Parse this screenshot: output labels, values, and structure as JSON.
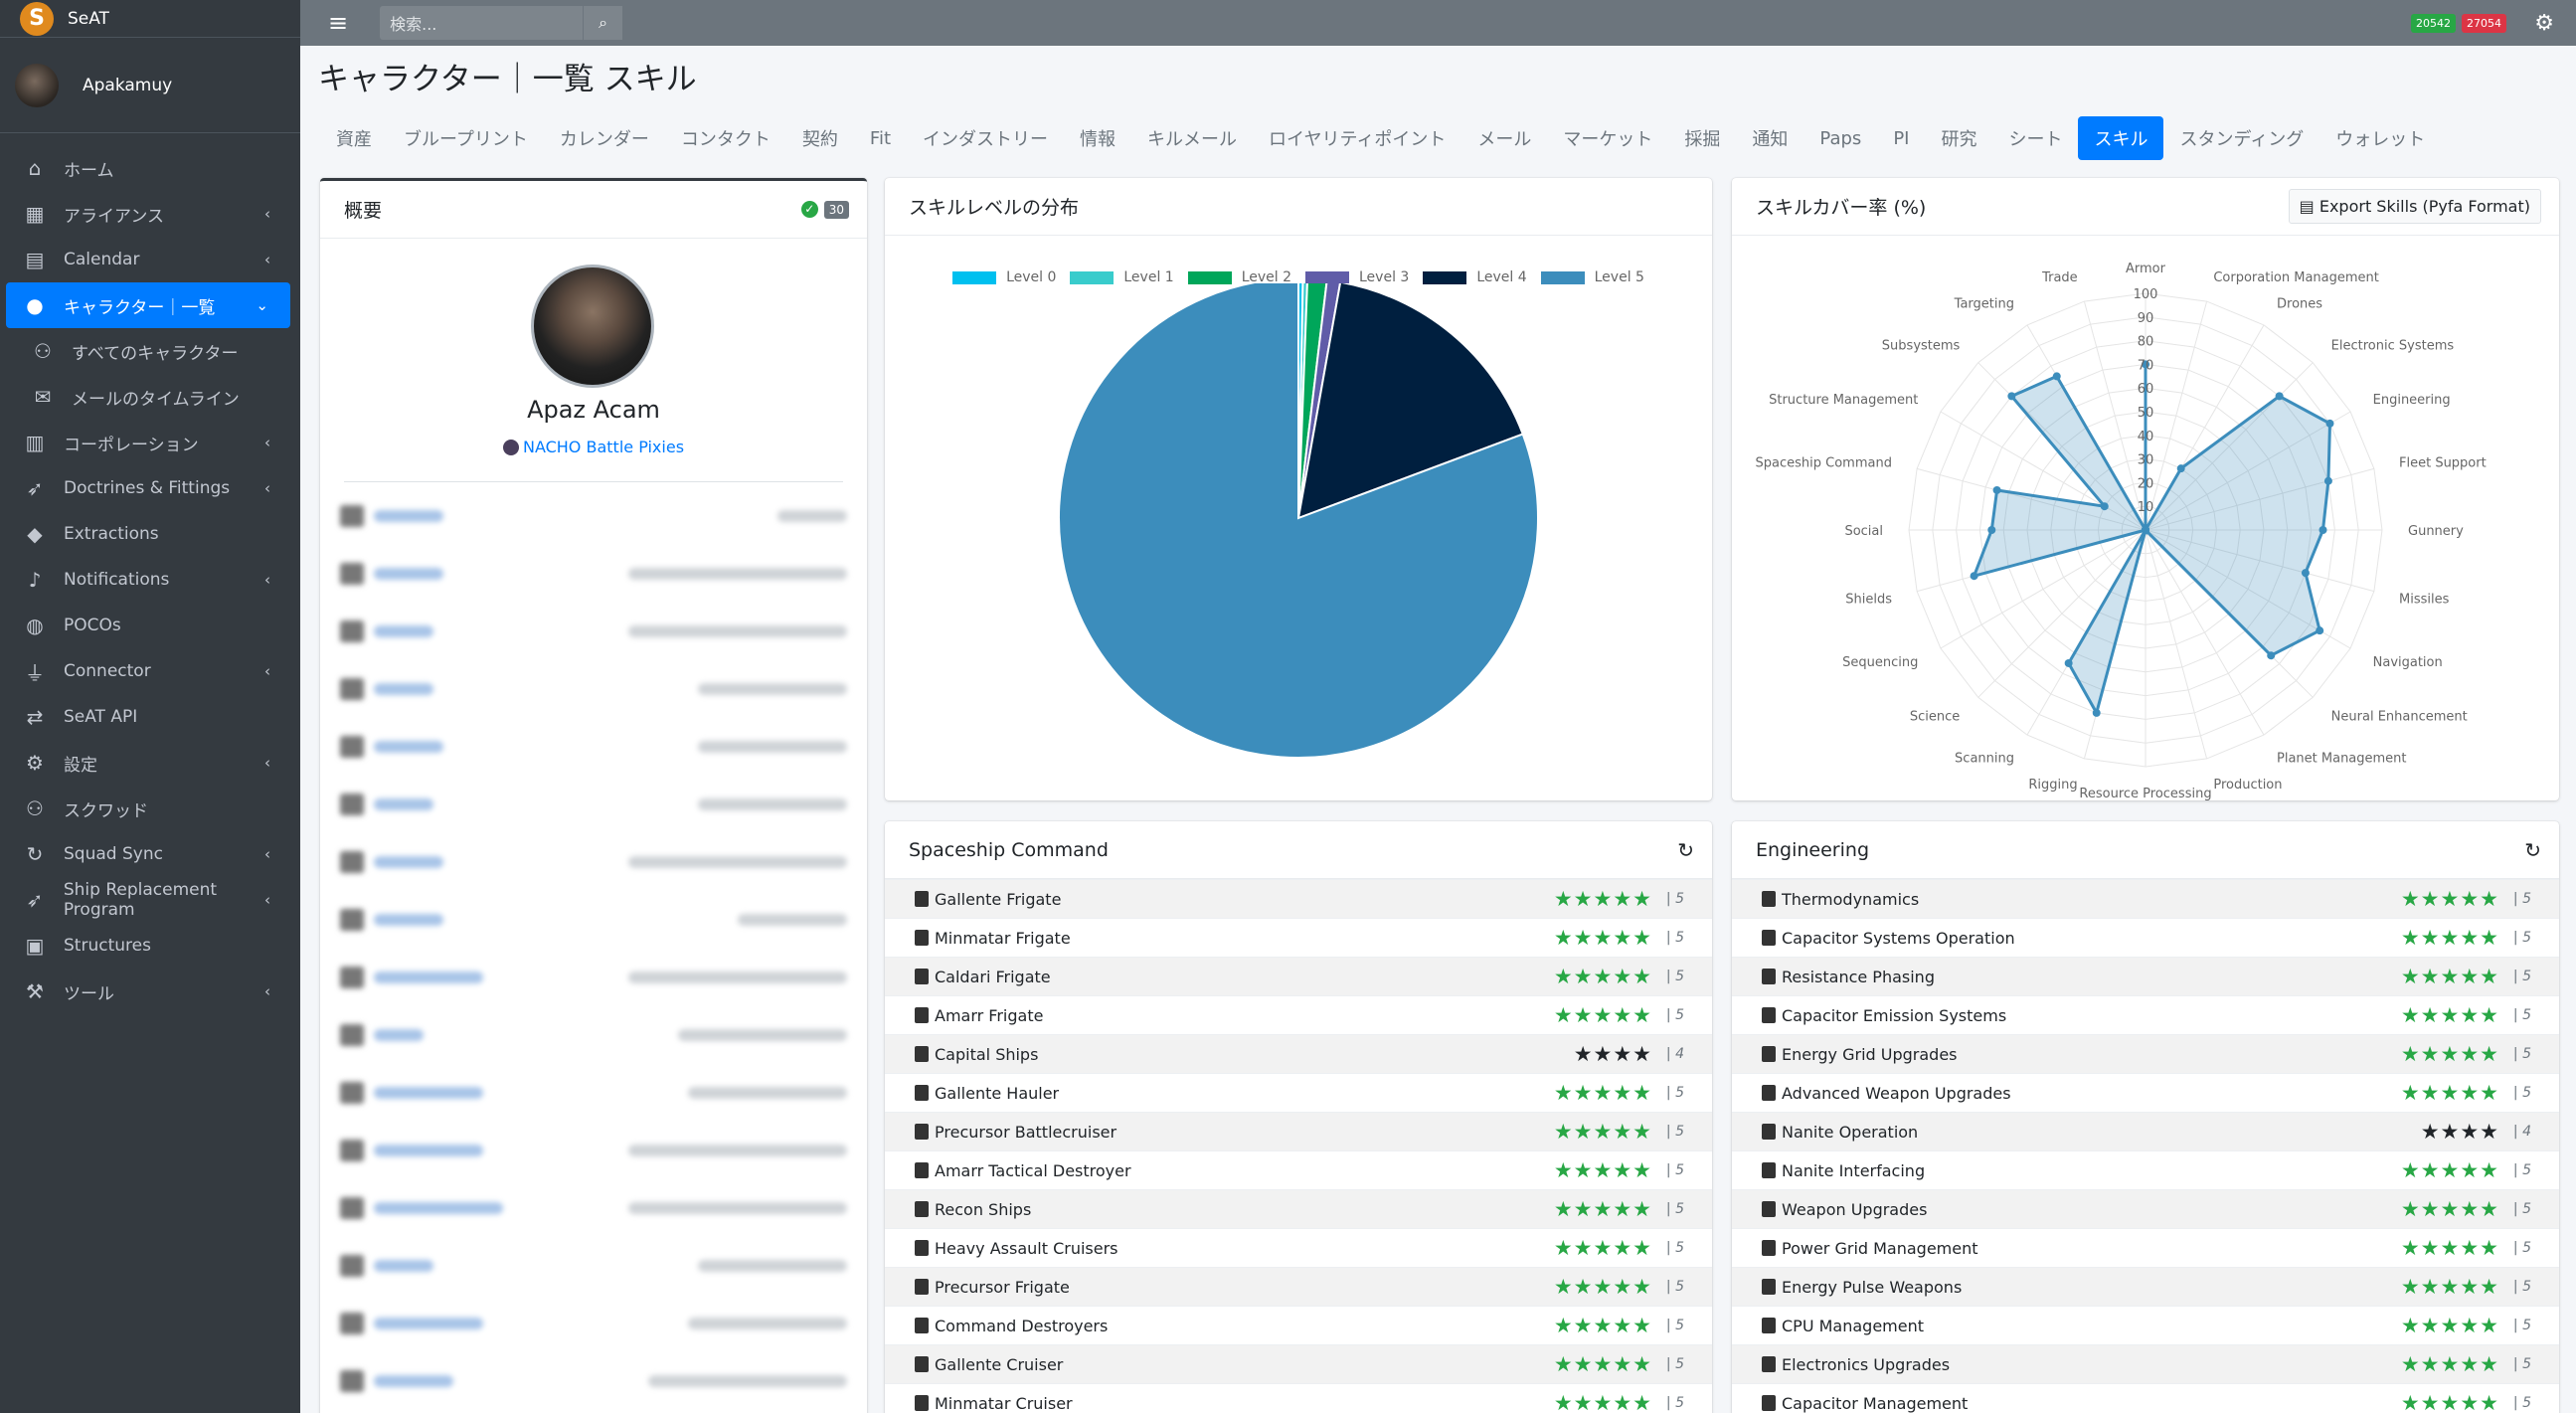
{
  "app": {
    "brand": "SeAT",
    "user": "Apakamuy"
  },
  "topbar": {
    "search_placeholder": "検索...",
    "badge1": "20542",
    "badge2": "27054"
  },
  "sidebar": {
    "items": [
      {
        "label": "ホーム",
        "icon": "home-icon",
        "glyph": "⌂",
        "chev": ""
      },
      {
        "label": "アライアンス",
        "icon": "building-icon",
        "glyph": "▦",
        "chev": "‹"
      },
      {
        "label": "Calendar",
        "icon": "calendar-icon",
        "glyph": "▤",
        "chev": "‹"
      },
      {
        "label": "キャラクター｜一覧",
        "icon": "user-icon",
        "glyph": "●",
        "chev": "⌄",
        "active": true
      },
      {
        "label": "すべてのキャラクター",
        "icon": "users-icon",
        "glyph": "⚇",
        "chev": "",
        "sub": true
      },
      {
        "label": "メールのタイムライン",
        "icon": "envelope-icon",
        "glyph": "✉",
        "chev": "",
        "sub": true
      },
      {
        "label": "コーポレーション",
        "icon": "corporation-icon",
        "glyph": "▥",
        "chev": "‹"
      },
      {
        "label": "Doctrines & Fittings",
        "icon": "rocket-icon",
        "glyph": "➶",
        "chev": "‹"
      },
      {
        "label": "Extractions",
        "icon": "gem-icon",
        "glyph": "◆",
        "chev": ""
      },
      {
        "label": "Notifications",
        "icon": "bell-icon",
        "glyph": "♪",
        "chev": "‹"
      },
      {
        "label": "POCOs",
        "icon": "globe-icon",
        "glyph": "◍",
        "chev": ""
      },
      {
        "label": "Connector",
        "icon": "plug-icon",
        "glyph": "⏚",
        "chev": "‹"
      },
      {
        "label": "SeAT API",
        "icon": "exchange-icon",
        "glyph": "⇄",
        "chev": ""
      },
      {
        "label": "設定",
        "icon": "cogs-icon",
        "glyph": "⚙",
        "chev": "‹"
      },
      {
        "label": "スクワッド",
        "icon": "squad-icon",
        "glyph": "⚇",
        "chev": ""
      },
      {
        "label": "Squad Sync",
        "icon": "sync-icon",
        "glyph": "↻",
        "chev": "‹"
      },
      {
        "label": "Ship Replacement Program",
        "icon": "rocket-icon",
        "glyph": "➶",
        "chev": "‹"
      },
      {
        "label": "Structures",
        "icon": "warehouse-icon",
        "glyph": "▣",
        "chev": ""
      },
      {
        "label": "ツール",
        "icon": "wrench-icon",
        "glyph": "⚒",
        "chev": "‹"
      }
    ]
  },
  "page": {
    "title": "キャラクター｜一覧 スキル"
  },
  "tabs": [
    "資産",
    "ブループリント",
    "カレンダー",
    "コンタクト",
    "契約",
    "Fit",
    "インダストリー",
    "情報",
    "キルメール",
    "ロイヤリティポイント",
    "メール",
    "マーケット",
    "採掘",
    "通知",
    "Paps",
    "PI",
    "研究",
    "シート",
    "スキル",
    "スタンディング",
    "ウォレット"
  ],
  "active_tab": "スキル",
  "summary": {
    "title": "概要",
    "count": "30",
    "character": "Apaz Acam",
    "corporation": "NACHO Battle Pixies"
  },
  "pie_card": {
    "title": "スキルレベルの分布"
  },
  "radar_card": {
    "title": "スキルカバー率 (%)",
    "export_label": "Export Skills (Pyfa Format)"
  },
  "colors": {
    "level0": "#00c0ef",
    "level1": "#39cccc",
    "level2": "#00a65a",
    "level3": "#605ca8",
    "level4": "#001f3f",
    "level5": "#3c8dbc",
    "star_green": "#28a745"
  },
  "chart_data": [
    {
      "type": "pie",
      "title": "スキルレベルの分布",
      "labels": [
        "Level 0",
        "Level 1",
        "Level 2",
        "Level 3",
        "Level 4",
        "Level 5"
      ],
      "values": [
        0.3,
        0.3,
        1.3,
        0.9,
        16.5,
        80.7
      ],
      "legend": "top"
    },
    {
      "type": "radar",
      "title": "スキルカバー率 (%)",
      "ticks": [
        "10",
        "20",
        "30",
        "40",
        "50",
        "60",
        "70",
        "80",
        "90",
        "100"
      ],
      "rmax": 100,
      "labels": [
        "Armor",
        "Corporation Management",
        "Drones",
        "Electronic Systems",
        "Engineering",
        "Fleet Support",
        "Gunnery",
        "Missiles",
        "Navigation",
        "Neural Enhancement",
        "Planet Management",
        "Production",
        "Resource Processing",
        "Rigging",
        "Scanning",
        "Science",
        "Sequencing",
        "Shields",
        "Social",
        "Spaceship Command",
        "Structure Management",
        "Subsystems",
        "Targeting",
        "Trade"
      ],
      "values": [
        70,
        0,
        30,
        80,
        90,
        80,
        75,
        70,
        85,
        75,
        0,
        0,
        0,
        80,
        65,
        0,
        0,
        75,
        65,
        65,
        20,
        80,
        75,
        0
      ]
    }
  ],
  "spaceship": {
    "title": "Spaceship Command",
    "skills": [
      {
        "name": "Gallente Frigate",
        "stars": "★★★★★",
        "level": "5"
      },
      {
        "name": "Minmatar Frigate",
        "stars": "★★★★★",
        "level": "5"
      },
      {
        "name": "Caldari Frigate",
        "stars": "★★★★★",
        "level": "5"
      },
      {
        "name": "Amarr Frigate",
        "stars": "★★★★★",
        "level": "5"
      },
      {
        "name": "Capital Ships",
        "stars": "★★★★",
        "level": "4",
        "dark": true
      },
      {
        "name": "Gallente Hauler",
        "stars": "★★★★★",
        "level": "5"
      },
      {
        "name": "Precursor Battlecruiser",
        "stars": "★★★★★",
        "level": "5"
      },
      {
        "name": "Amarr Tactical Destroyer",
        "stars": "★★★★★",
        "level": "5"
      },
      {
        "name": "Recon Ships",
        "stars": "★★★★★",
        "level": "5"
      },
      {
        "name": "Heavy Assault Cruisers",
        "stars": "★★★★★",
        "level": "5"
      },
      {
        "name": "Precursor Frigate",
        "stars": "★★★★★",
        "level": "5"
      },
      {
        "name": "Command Destroyers",
        "stars": "★★★★★",
        "level": "5"
      },
      {
        "name": "Gallente Cruiser",
        "stars": "★★★★★",
        "level": "5"
      },
      {
        "name": "Minmatar Cruiser",
        "stars": "★★★★★",
        "level": "5"
      }
    ]
  },
  "engineering": {
    "title": "Engineering",
    "skills": [
      {
        "name": "Thermodynamics",
        "stars": "★★★★★",
        "level": "5"
      },
      {
        "name": "Capacitor Systems Operation",
        "stars": "★★★★★",
        "level": "5"
      },
      {
        "name": "Resistance Phasing",
        "stars": "★★★★★",
        "level": "5"
      },
      {
        "name": "Capacitor Emission Systems",
        "stars": "★★★★★",
        "level": "5"
      },
      {
        "name": "Energy Grid Upgrades",
        "stars": "★★★★★",
        "level": "5"
      },
      {
        "name": "Advanced Weapon Upgrades",
        "stars": "★★★★★",
        "level": "5"
      },
      {
        "name": "Nanite Operation",
        "stars": "★★★★",
        "level": "4",
        "dark": true
      },
      {
        "name": "Nanite Interfacing",
        "stars": "★★★★★",
        "level": "5"
      },
      {
        "name": "Weapon Upgrades",
        "stars": "★★★★★",
        "level": "5"
      },
      {
        "name": "Power Grid Management",
        "stars": "★★★★★",
        "level": "5"
      },
      {
        "name": "Energy Pulse Weapons",
        "stars": "★★★★★",
        "level": "5"
      },
      {
        "name": "CPU Management",
        "stars": "★★★★★",
        "level": "5"
      },
      {
        "name": "Electronics Upgrades",
        "stars": "★★★★★",
        "level": "5"
      },
      {
        "name": "Capacitor Management",
        "stars": "★★★★★",
        "level": "5"
      }
    ]
  }
}
